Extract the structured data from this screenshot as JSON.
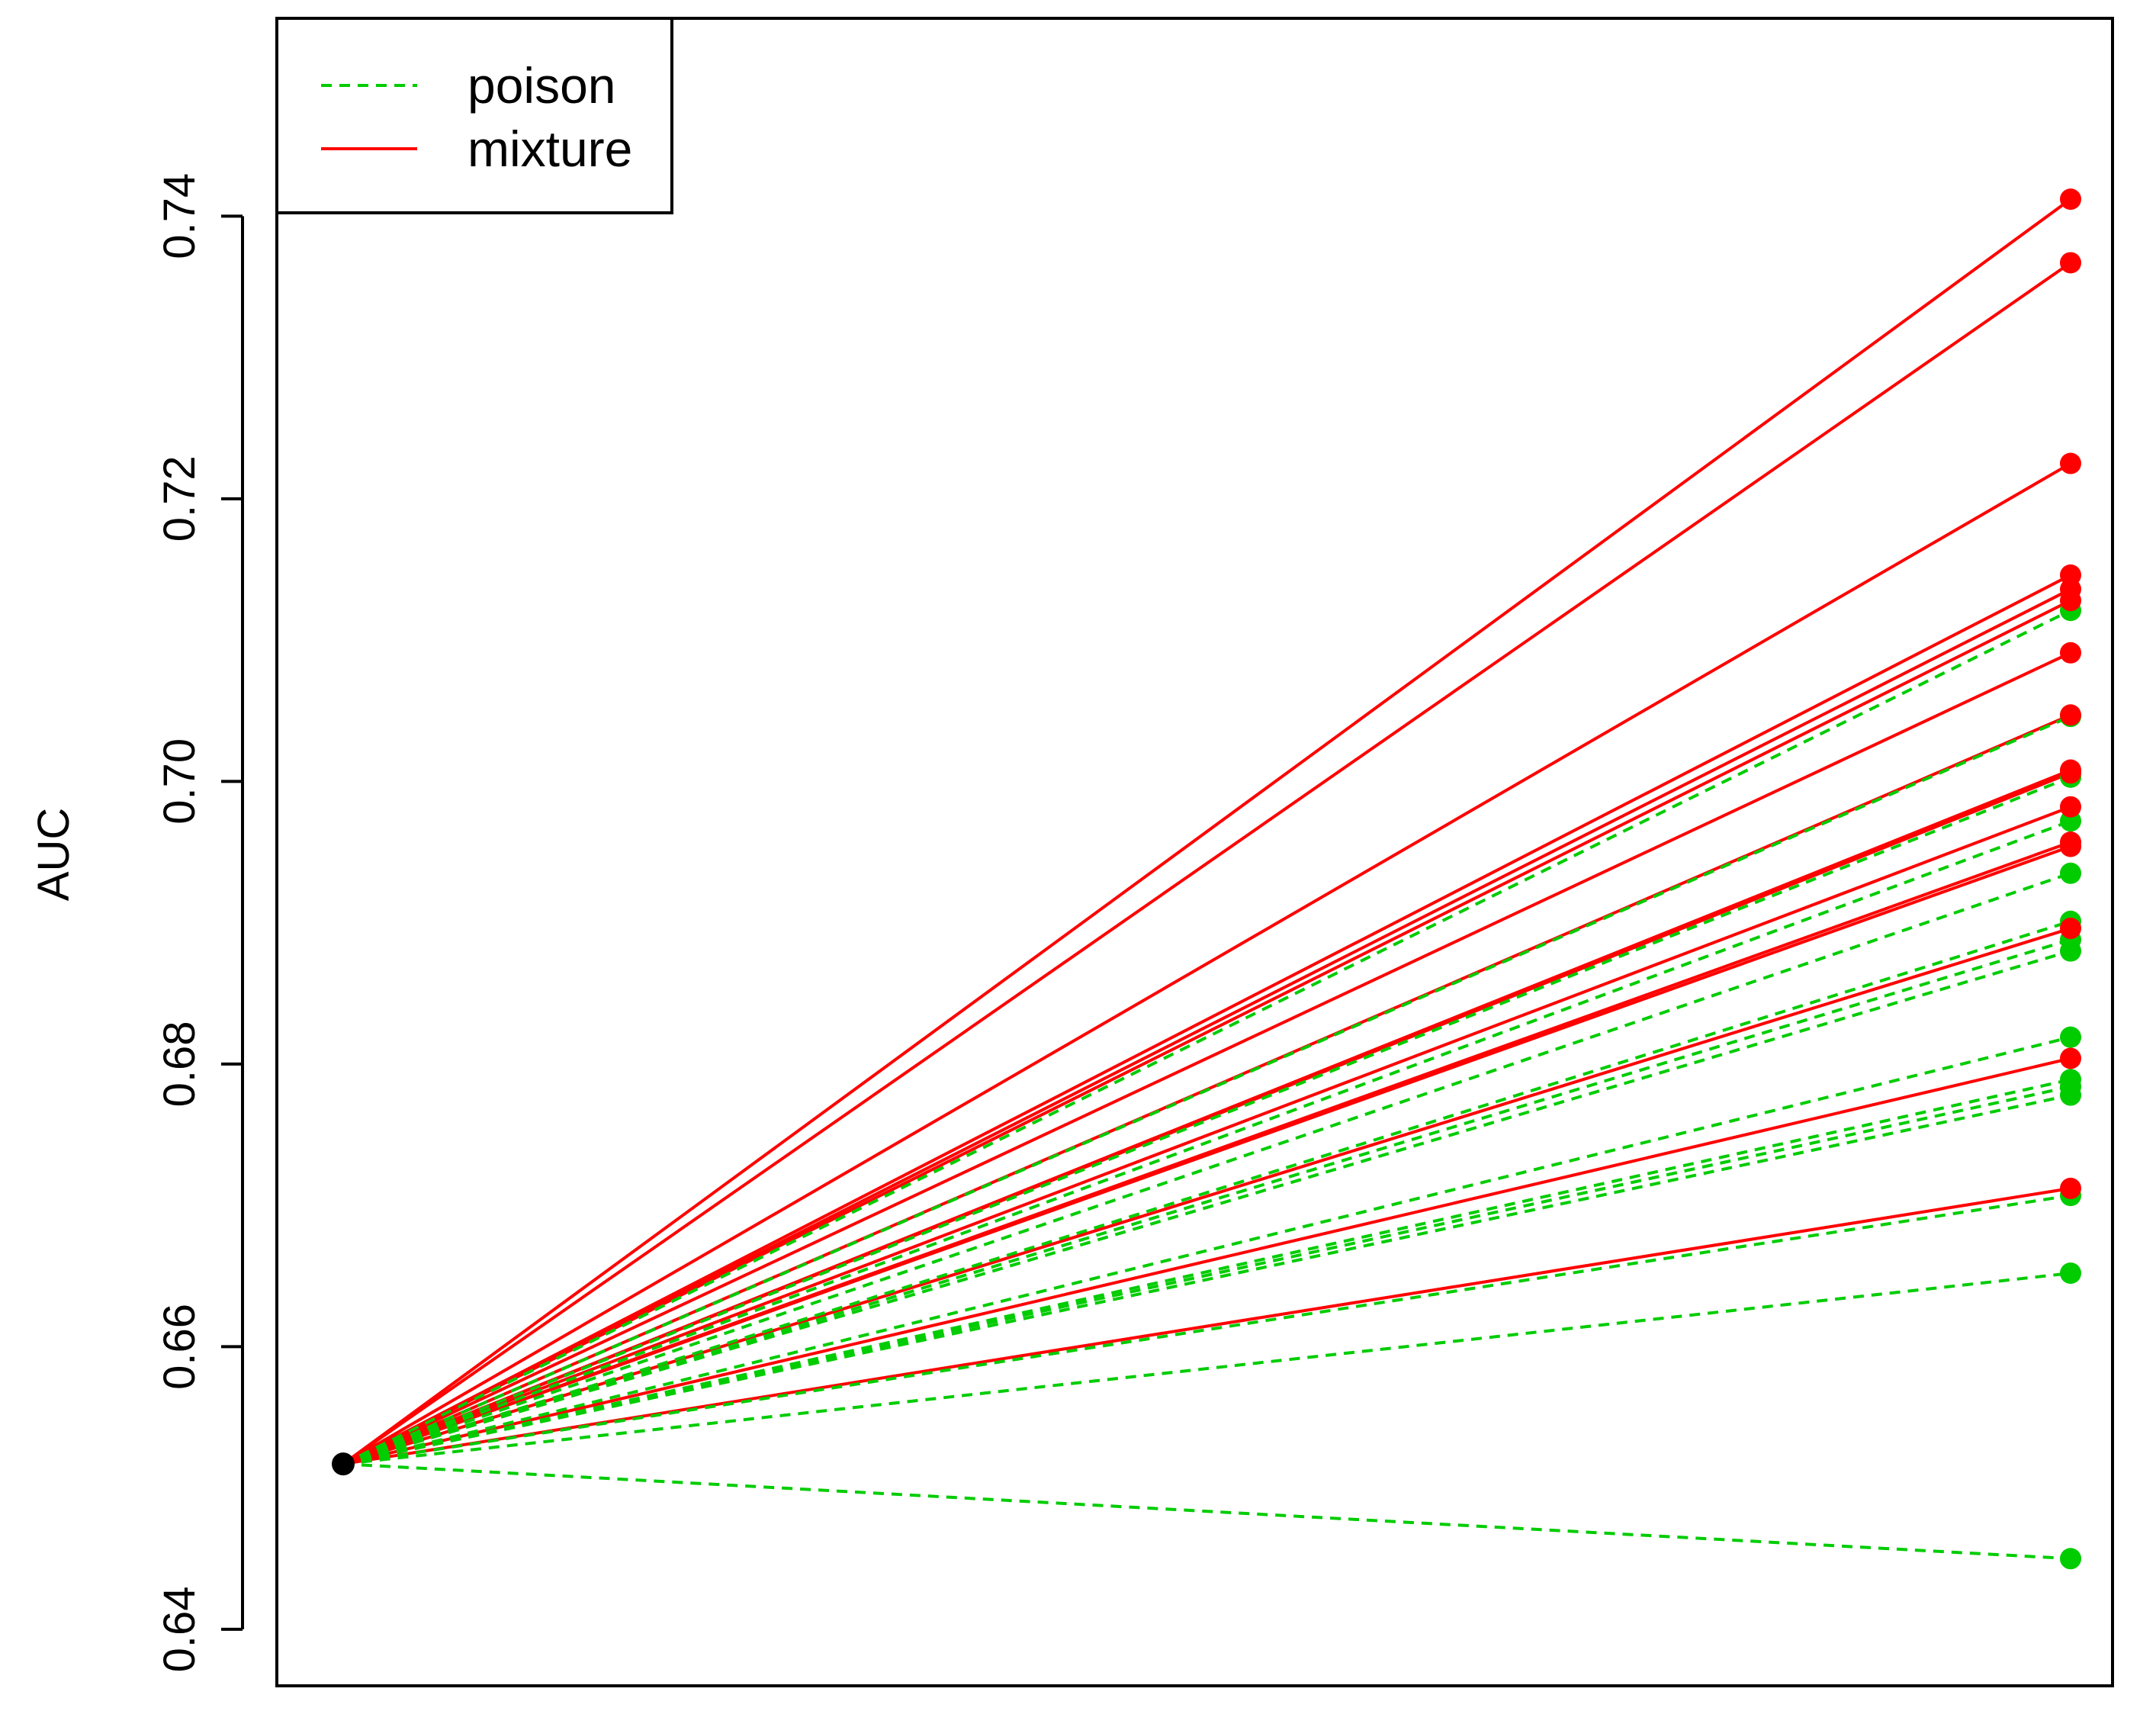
{
  "chart_data": {
    "type": "line",
    "ylabel": "AUC",
    "xlabel": "",
    "title": "",
    "ylim": [
      0.636,
      0.754
    ],
    "yticks": [
      "0.64",
      "0.66",
      "0.68",
      "0.70",
      "0.72",
      "0.74"
    ],
    "ytick_values": [
      0.64,
      0.66,
      0.68,
      0.7,
      0.72,
      0.74
    ],
    "grid": false,
    "legend": {
      "position": "top-left",
      "entries": [
        {
          "label": "poison",
          "color": "#00cc00",
          "style": "dashed"
        },
        {
          "label": "mixture",
          "color": "#ff0000",
          "style": "solid"
        }
      ]
    },
    "baseline": {
      "y": 0.6517,
      "color": "#000000"
    },
    "series": [
      {
        "name": "poison",
        "color": "#00cc00",
        "style": "dashed",
        "end_values": [
          0.7121,
          0.7046,
          0.7003,
          0.6972,
          0.6935,
          0.6901,
          0.6888,
          0.688,
          0.6819,
          0.6789,
          0.6784,
          0.6778,
          0.6707,
          0.6652,
          0.645
        ]
      },
      {
        "name": "mixture",
        "color": "#ff0000",
        "style": "solid",
        "end_values": [
          0.7412,
          0.7367,
          0.7225,
          0.7146,
          0.7136,
          0.7128,
          0.7091,
          0.7047,
          0.7008,
          0.7006,
          0.6982,
          0.6957,
          0.6954,
          0.6896,
          0.6804,
          0.6712
        ]
      }
    ]
  }
}
